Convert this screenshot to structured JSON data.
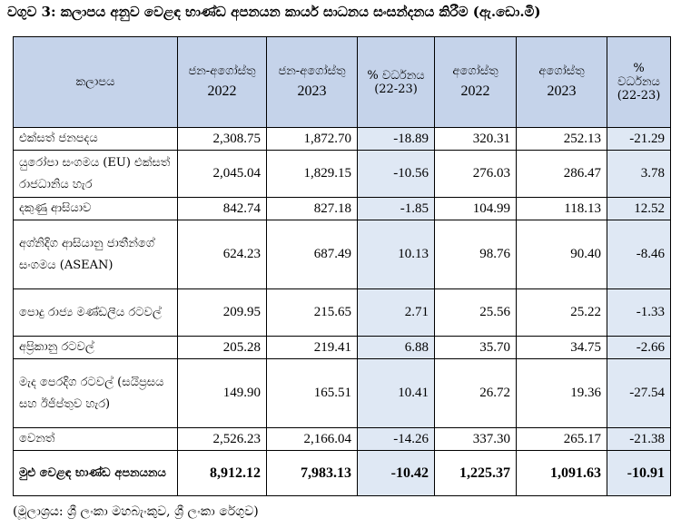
{
  "caption": "වගුව 3: කලාපය අනුව වෙළඳ භාණ්ඩ අපනයන කාර්ය සාධනය සංසන්දනය කිරීම (ඇ.ඩො.මි)",
  "headers": {
    "region": "කලාපය",
    "c1_label": "ජන-අගෝස්තු",
    "c1_year": "2022",
    "c2_label": "ජන-අගෝස්තු",
    "c2_year": "2023",
    "c3_label": "% වර්ධනය (22-23)",
    "c4_label": "අගෝස්තු",
    "c4_year": "2022",
    "c5_label": "අගෝස්තු",
    "c5_year": "2023",
    "c6_label": "% වර්ධනය (22-23)"
  },
  "rows": [
    {
      "region": "එක්සත් ජනපදය",
      "v": [
        "2,308.75",
        "1,872.70",
        "-18.89",
        "320.31",
        "252.13",
        "-21.29"
      ]
    },
    {
      "region": "යුරෝපා සංගමය (EU) එක්සත් රාජධානිය හැර",
      "v": [
        "2,045.04",
        "1,829.15",
        "-10.56",
        "276.03",
        "286.47",
        "3.78"
      ]
    },
    {
      "region": "දකුණු ආසියාව",
      "v": [
        "842.74",
        "827.18",
        "-1.85",
        "104.99",
        "118.13",
        "12.52"
      ]
    },
    {
      "region": "අග්නිදිග ආසියානු ජාතීන්ගේ සංගමය (ASEAN)",
      "v": [
        "624.23",
        "687.49",
        "10.13",
        "98.76",
        "90.40",
        "-8.46"
      ]
    },
    {
      "region": "පොදු රාජ්‍ය මණ්ඩලීය රටවල්",
      "v": [
        "209.95",
        "215.65",
        "2.71",
        "25.56",
        "25.22",
        "-1.33"
      ]
    },
    {
      "region": "අප්‍රිකානු රටවල්",
      "v": [
        "205.28",
        "219.41",
        "6.88",
        "35.70",
        "34.75",
        "-2.66"
      ]
    },
    {
      "region": "මැද පෙරදිග රටවල් (සයිප්‍රසය සහ ඊජිප්තුව හැර)",
      "v": [
        "149.90",
        "165.51",
        "10.41",
        "26.72",
        "19.36",
        "-27.54"
      ]
    },
    {
      "region": "වෙනත්",
      "v": [
        "2,526.23",
        "2,166.04",
        "-14.26",
        "337.30",
        "265.17",
        "-21.38"
      ]
    }
  ],
  "total": {
    "region": "මුළු වෙළඳ භාණ්ඩ අපනයනය",
    "v": [
      "8,912.12",
      "7,983.13",
      "-10.42",
      "1,225.37",
      "1,091.63",
      "-10.91"
    ]
  },
  "source": "(මූලාශ්‍රය: ශ්‍රී ලංකා මහබැංකුව, ශ්‍රී ලංකා රේගුව)"
}
